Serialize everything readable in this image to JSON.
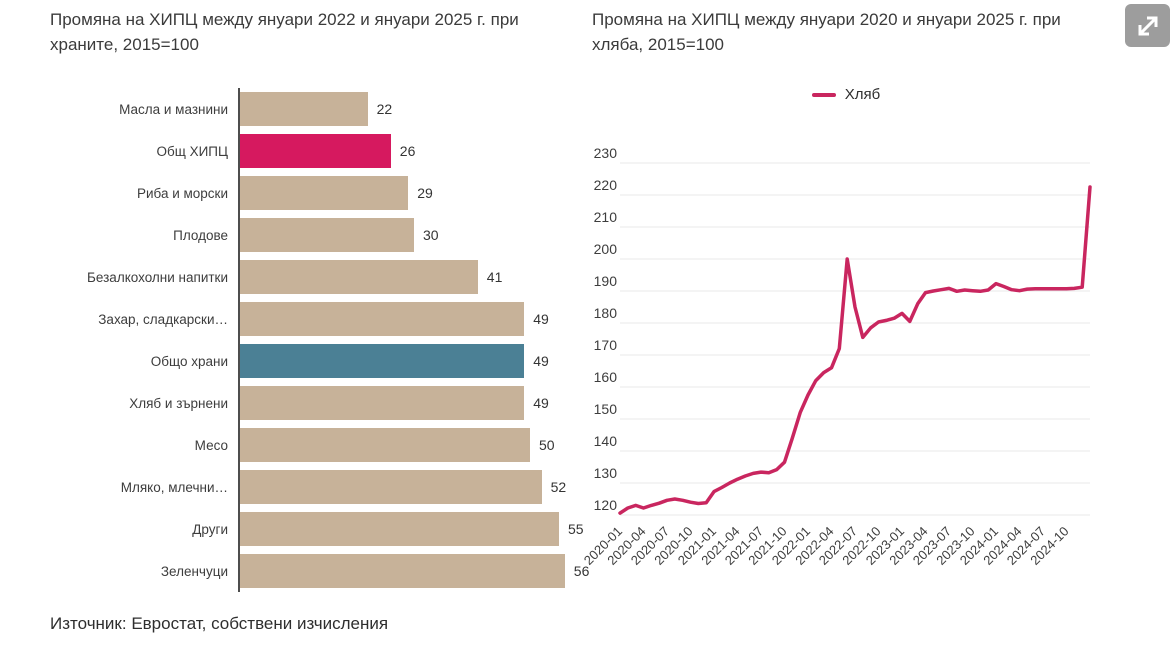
{
  "source_note": "Източник: Евростат, собствени изчисления",
  "fullscreen_button": {
    "icon": "expand-diagonal-arrows"
  },
  "chart_data": [
    {
      "type": "bar",
      "orientation": "horizontal",
      "title": "Промяна на ХИПЦ между януари 2022 и януари 2025 г. при храните, 2015=100",
      "categories": [
        "Масла и мазнини",
        "Общ ХИПЦ",
        "Риба и морски",
        "Плодове",
        "Безалкохолни напитки",
        "Захар, сладкарски…",
        "Общо храни",
        "Хляб и зърнени",
        "Месо",
        "Мляко, млечни…",
        "Други",
        "Зеленчуци"
      ],
      "values": [
        22,
        26,
        29,
        30,
        41,
        49,
        49,
        49,
        50,
        52,
        55,
        56
      ],
      "xlim": [
        0,
        56
      ],
      "colors": {
        "default_bar": "#c7b299",
        "highlight_overall_hicp": "#d6195f",
        "highlight_total_food": "#4b8095",
        "axis_line": "#4d4d4d"
      },
      "highlights": [
        {
          "index": 1,
          "color": "#d6195f"
        },
        {
          "index": 6,
          "color": "#4b8095"
        }
      ],
      "value_labels_shown": true,
      "grid": false
    },
    {
      "type": "line",
      "title": "Промяна на ХИПЦ между януари 2020 и януари 2025 г. при хляба, 2015=100",
      "legend_position": "top-center",
      "ylim": [
        120,
        230
      ],
      "y_ticks": [
        120,
        130,
        140,
        150,
        160,
        170,
        180,
        190,
        200,
        210,
        220,
        230
      ],
      "grid": true,
      "colors": {
        "line": "#c9265f",
        "gridline": "#e8e8e8",
        "tick_text": "#3d3d3d"
      },
      "x": [
        "2020-01",
        "2020-02",
        "2020-03",
        "2020-04",
        "2020-05",
        "2020-06",
        "2020-07",
        "2020-08",
        "2020-09",
        "2020-10",
        "2020-11",
        "2020-12",
        "2021-01",
        "2021-02",
        "2021-03",
        "2021-04",
        "2021-05",
        "2021-06",
        "2021-07",
        "2021-08",
        "2021-09",
        "2021-10",
        "2021-11",
        "2021-12",
        "2022-01",
        "2022-02",
        "2022-03",
        "2022-04",
        "2022-05",
        "2022-06",
        "2022-07",
        "2022-08",
        "2022-09",
        "2022-10",
        "2022-11",
        "2022-12",
        "2023-01",
        "2023-02",
        "2023-03",
        "2023-04",
        "2023-05",
        "2023-06",
        "2023-07",
        "2023-08",
        "2023-09",
        "2023-10",
        "2023-11",
        "2023-12",
        "2024-01",
        "2024-02",
        "2024-03",
        "2024-04",
        "2024-05",
        "2024-06",
        "2024-07",
        "2024-08",
        "2024-09",
        "2024-10",
        "2024-11",
        "2024-12",
        "2025-01"
      ],
      "x_ticks": [
        "2020-01",
        "2020-04",
        "2020-07",
        "2020-10",
        "2021-01",
        "2021-04",
        "2021-07",
        "2021-10",
        "2022-01",
        "2022-04",
        "2022-07",
        "2022-10",
        "2023-01",
        "2023-04",
        "2023-07",
        "2023-10",
        "2024-01",
        "2024-04",
        "2024-07",
        "2024-10"
      ],
      "series": [
        {
          "name": "Хляб",
          "color": "#c9265f",
          "values": [
            120.6,
            122.2,
            123.0,
            122.2,
            123.0,
            123.7,
            124.6,
            125.0,
            124.6,
            124.0,
            123.6,
            123.8,
            127.3,
            128.6,
            130.0,
            131.2,
            132.2,
            133.0,
            133.4,
            133.2,
            134.2,
            136.5,
            144.0,
            152.0,
            157.5,
            162.0,
            164.5,
            166.0,
            172.0,
            200.0,
            185.0,
            175.5,
            178.5,
            180.3,
            180.8,
            181.5,
            183.0,
            180.5,
            186.0,
            189.5,
            190.0,
            190.4,
            190.8,
            189.9,
            190.3,
            190.1,
            189.9,
            190.3,
            192.3,
            191.4,
            190.4,
            190.1,
            190.6,
            190.7,
            190.7,
            190.7,
            190.7,
            190.7,
            190.8,
            191.2,
            222.5
          ]
        }
      ]
    }
  ]
}
